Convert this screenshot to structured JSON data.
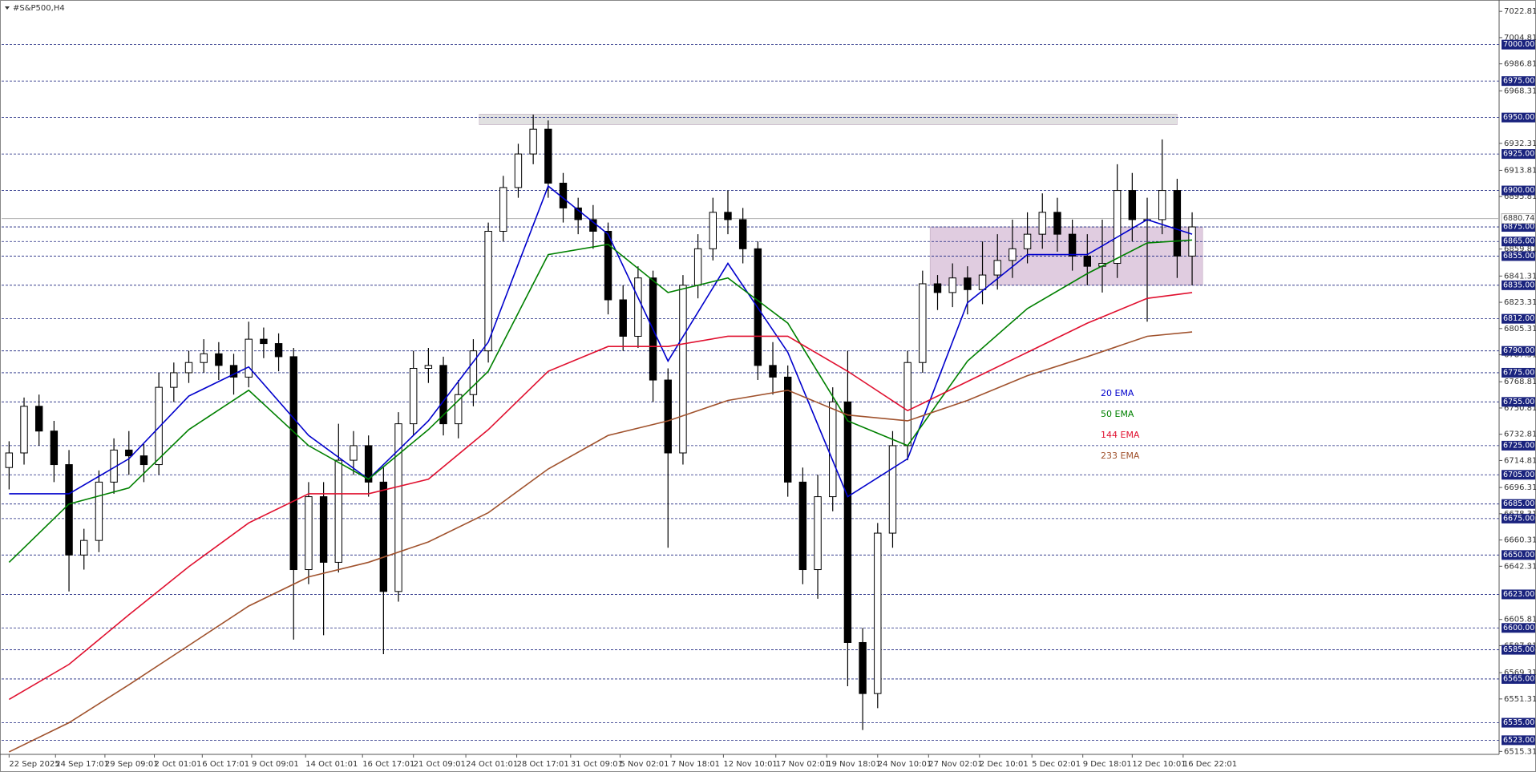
{
  "chart_data": {
    "type": "candlestick",
    "title": "#S&P500,H4",
    "xlim": [
      -0.5,
      99.5
    ],
    "xticks": [
      {
        "value": 0,
        "label": "22 Sep 2025"
      },
      {
        "value": 3.1,
        "label": "24 Sep 17:01"
      },
      {
        "value": 6.4,
        "label": "29 Sep 09:01"
      },
      {
        "value": 9.7,
        "label": "2 Oct 01:01"
      },
      {
        "value": 12.9,
        "label": "6 Oct 17:01"
      },
      {
        "value": 16.2,
        "label": "9 Oct 09:01"
      },
      {
        "value": 19.8,
        "label": "14 Oct 01:01"
      },
      {
        "value": 23.6,
        "label": "16 Oct 17:01"
      },
      {
        "value": 27,
        "label": "21 Oct 09:01"
      },
      {
        "value": 30.5,
        "label": "24 Oct 01:01"
      },
      {
        "value": 33.9,
        "label": "28 Oct 17:01"
      },
      {
        "value": 37.5,
        "label": "31 Oct 09:01"
      },
      {
        "value": 40.8,
        "label": "5 Nov 02:01"
      },
      {
        "value": 44.2,
        "label": "7 Nov 18:01"
      },
      {
        "value": 47.7,
        "label": "12 Nov 10:01"
      },
      {
        "value": 51.2,
        "label": "17 Nov 02:01"
      },
      {
        "value": 54.6,
        "label": "19 Nov 18:01"
      },
      {
        "value": 58,
        "label": "24 Nov 10:01"
      },
      {
        "value": 61.4,
        "label": "27 Nov 02:01"
      },
      {
        "value": 64.8,
        "label": "2 Dec 10:01"
      },
      {
        "value": 68.3,
        "label": "5 Dec 02:01"
      },
      {
        "value": 71.7,
        "label": "9 Dec 18:01"
      },
      {
        "value": 75,
        "label": "12 Dec 10:01"
      },
      {
        "value": 78.4,
        "label": "16 Dec 22:01"
      }
    ],
    "ylim": [
      6513.3,
      7029.5
    ],
    "yticks": [
      7022.81,
      7004.81,
      6986.81,
      6968.31,
      6932.31,
      6913.81,
      6895.81,
      6859.81,
      6841.31,
      6823.31,
      6805.31,
      6787.31,
      6768.81,
      6750.81,
      6732.81,
      6714.81,
      6696.31,
      6678.31,
      6660.31,
      6642.31,
      6605.81,
      6587.81,
      6569.31,
      6551.31,
      6515.31
    ],
    "levels": [
      {
        "value": 7000,
        "label": "7000.00"
      },
      {
        "value": 6975,
        "label": "6975.00"
      },
      {
        "value": 6950,
        "label": "6950.00"
      },
      {
        "value": 6925,
        "label": "6925.00"
      },
      {
        "value": 6900,
        "label": "6900.00"
      },
      {
        "value": 6875,
        "label": "6875.00"
      },
      {
        "value": 6865,
        "label": "6865.00"
      },
      {
        "value": 6855,
        "label": "6855.00"
      },
      {
        "value": 6835,
        "label": "6835.00"
      },
      {
        "value": 6812,
        "label": "6812.00"
      },
      {
        "value": 6790,
        "label": "6790.00"
      },
      {
        "value": 6775,
        "label": "6775.00"
      },
      {
        "value": 6755,
        "label": "6755.00"
      },
      {
        "value": 6725,
        "label": "6725.00"
      },
      {
        "value": 6705,
        "label": "6705.00"
      },
      {
        "value": 6685,
        "label": "6685.00"
      },
      {
        "value": 6675,
        "label": "6675.00"
      },
      {
        "value": 6650,
        "label": "6650.00"
      },
      {
        "value": 6623,
        "label": "6623.00"
      },
      {
        "value": 6600,
        "label": "6600.00"
      },
      {
        "value": 6585,
        "label": "6585.00"
      },
      {
        "value": 6565,
        "label": "6565.00"
      },
      {
        "value": 6535,
        "label": "6535.00"
      },
      {
        "value": 6523,
        "label": "6523.00"
      }
    ],
    "last_price": 6880.74,
    "zones": [
      {
        "xlim": [
          31.4,
          78
        ],
        "ylim": [
          6945,
          6952.4
        ],
        "color": "#d9d9d9"
      },
      {
        "xlim": [
          61.5,
          79.7
        ],
        "ylim": [
          6835,
          6875
        ],
        "color": "#d8bfd8"
      }
    ],
    "open": [
      6710,
      6720,
      6752,
      6735,
      6712,
      6650,
      6660,
      6700,
      6722,
      6718,
      6712,
      6765,
      6775,
      6782,
      6788,
      6780,
      6772,
      6798,
      6795,
      6786,
      6640,
      6690,
      6645,
      6715,
      6725,
      6700,
      6625,
      6740,
      6778,
      6780,
      6740,
      6760,
      6790,
      6872,
      6902,
      6925,
      6942,
      6905,
      6888,
      6880,
      6872,
      6825,
      6800,
      6840,
      6770,
      6720,
      6835,
      6860,
      6885,
      6880,
      6860,
      6780,
      6772,
      6700,
      6640,
      6690,
      6755,
      6590,
      6555,
      6665,
      6725,
      6782,
      6836,
      6830,
      6840,
      6832,
      6842,
      6852,
      6860,
      6870,
      6885,
      6870,
      6855,
      6848,
      6850,
      6900,
      6880,
      6880,
      6900,
      6855
    ],
    "high": [
      6728,
      6758,
      6760,
      6742,
      6722,
      6668,
      6708,
      6730,
      6735,
      6726,
      6775,
      6782,
      6790,
      6798,
      6796,
      6788,
      6810,
      6806,
      6802,
      6792,
      6700,
      6700,
      6740,
      6735,
      6732,
      6710,
      6748,
      6790,
      6792,
      6786,
      6770,
      6798,
      6878,
      6910,
      6932,
      6952,
      6948,
      6912,
      6895,
      6890,
      6878,
      6835,
      6848,
      6845,
      6778,
      6842,
      6870,
      6895,
      6900,
      6888,
      6865,
      6796,
      6780,
      6710,
      6705,
      6765,
      6790,
      6600,
      6672,
      6735,
      6790,
      6845,
      6842,
      6850,
      6848,
      6865,
      6870,
      6880,
      6885,
      6898,
      6895,
      6880,
      6870,
      6880,
      6918,
      6912,
      6895,
      6935,
      6908,
      6885
    ],
    "low": [
      6695,
      6712,
      6725,
      6700,
      6625,
      6640,
      6652,
      6692,
      6705,
      6700,
      6705,
      6755,
      6768,
      6775,
      6770,
      6760,
      6765,
      6785,
      6776,
      6592,
      6630,
      6595,
      6638,
      6705,
      6690,
      6582,
      6618,
      6732,
      6768,
      6732,
      6730,
      6752,
      6782,
      6865,
      6895,
      6918,
      6895,
      6878,
      6870,
      6860,
      6815,
      6790,
      6792,
      6755,
      6655,
      6712,
      6826,
      6852,
      6870,
      6850,
      6770,
      6760,
      6690,
      6630,
      6620,
      6680,
      6560,
      6530,
      6545,
      6655,
      6715,
      6775,
      6818,
      6820,
      6815,
      6822,
      6832,
      6840,
      6850,
      6860,
      6858,
      6845,
      6835,
      6830,
      6840,
      6865,
      6810,
      6870,
      6840,
      6835
    ],
    "close": [
      6720,
      6752,
      6735,
      6712,
      6650,
      6660,
      6700,
      6722,
      6718,
      6712,
      6765,
      6775,
      6782,
      6788,
      6780,
      6772,
      6798,
      6795,
      6786,
      6640,
      6690,
      6645,
      6715,
      6725,
      6700,
      6625,
      6740,
      6778,
      6780,
      6740,
      6760,
      6790,
      6872,
      6902,
      6925,
      6942,
      6905,
      6888,
      6880,
      6872,
      6825,
      6800,
      6840,
      6770,
      6720,
      6835,
      6860,
      6885,
      6880,
      6860,
      6780,
      6772,
      6700,
      6640,
      6690,
      6755,
      6590,
      6555,
      6665,
      6725,
      6782,
      6836,
      6830,
      6840,
      6832,
      6842,
      6852,
      6860,
      6870,
      6885,
      6870,
      6855,
      6848,
      6850,
      6900,
      6880,
      6880,
      6900,
      6855,
      6875
    ],
    "series": [
      {
        "name": "20 EMA",
        "color": "#0000cc",
        "x": [
          0,
          4,
          8,
          12,
          16,
          20,
          24,
          28,
          32,
          36,
          40,
          44,
          48,
          52,
          56,
          60,
          64,
          68,
          72,
          76,
          79
        ],
        "values": [
          6692,
          6692,
          6716,
          6759,
          6779,
          6732,
          6702,
          6742,
          6796,
          6903,
          6870,
          6783,
          6850,
          6789,
          6690,
          6716,
          6823,
          6856,
          6856,
          6880,
          6870
        ]
      },
      {
        "name": "50 EMA",
        "color": "#008000",
        "x": [
          0,
          4,
          8,
          12,
          16,
          20,
          24,
          28,
          32,
          36,
          40,
          44,
          48,
          52,
          56,
          60,
          64,
          68,
          72,
          76,
          79
        ],
        "values": [
          6645,
          6685,
          6696,
          6736,
          6763,
          6725,
          6702,
          6736,
          6776,
          6856,
          6863,
          6830,
          6840,
          6809,
          6742,
          6725,
          6783,
          6819,
          6843,
          6864,
          6866
        ]
      },
      {
        "name": "144 EMA",
        "color": "#e0102f",
        "x": [
          0,
          4,
          8,
          12,
          16,
          20,
          24,
          28,
          32,
          36,
          40,
          44,
          48,
          52,
          56,
          60,
          64,
          68,
          72,
          76,
          79
        ],
        "values": [
          6551,
          6575,
          6609,
          6642,
          6672,
          6692,
          6692,
          6702,
          6736,
          6776,
          6793,
          6793,
          6800,
          6800,
          6776,
          6749,
          6769,
          6789,
          6809,
          6826,
          6830
        ]
      },
      {
        "name": "233 EMA",
        "color": "#a0522d",
        "x": [
          0,
          4,
          8,
          12,
          16,
          20,
          24,
          28,
          32,
          36,
          40,
          44,
          48,
          52,
          56,
          60,
          64,
          68,
          72,
          76,
          79
        ],
        "values": [
          6515,
          6535,
          6561,
          6588,
          6615,
          6635,
          6645,
          6659,
          6679,
          6709,
          6732,
          6742,
          6756,
          6763,
          6746,
          6742,
          6756,
          6773,
          6786,
          6800,
          6803
        ]
      }
    ]
  }
}
